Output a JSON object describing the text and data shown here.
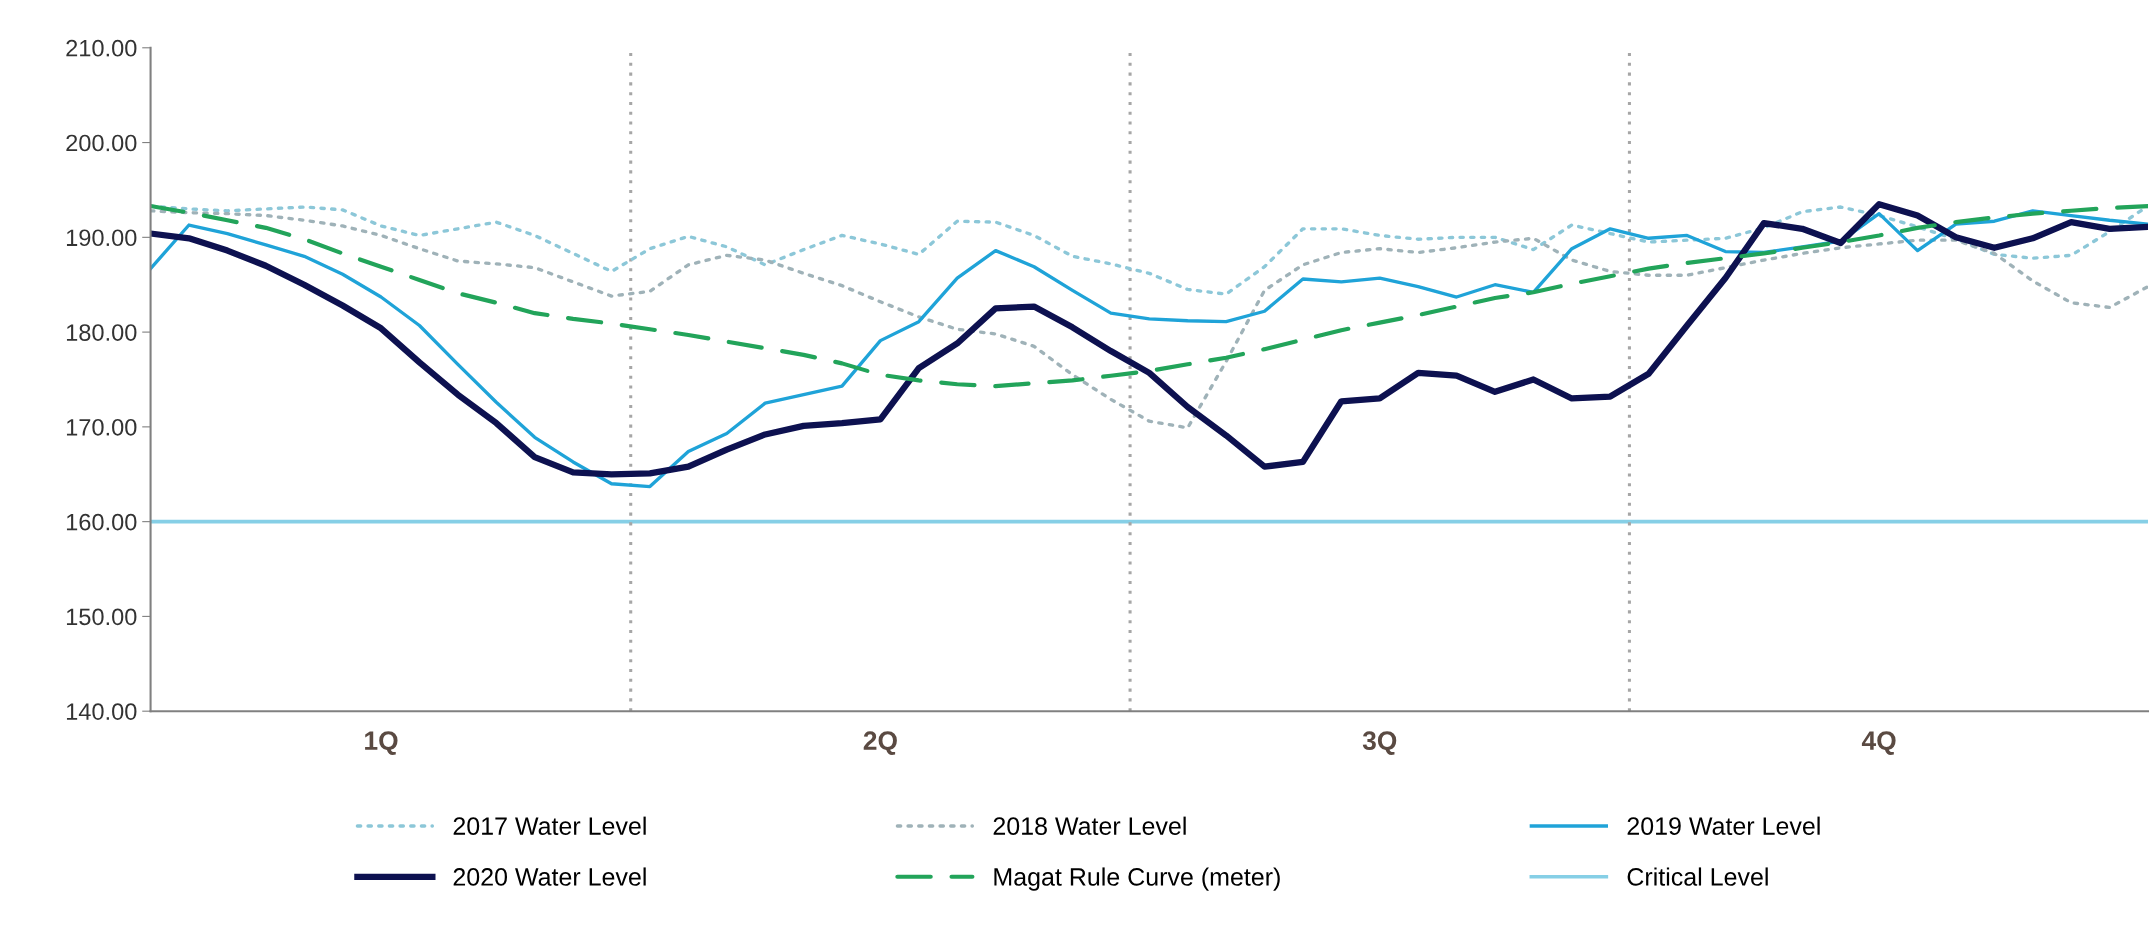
{
  "chart_data": {
    "type": "line",
    "categories": [
      null,
      null,
      null,
      null,
      null,
      null,
      "1Q",
      null,
      null,
      null,
      null,
      null,
      null,
      null,
      null,
      null,
      null,
      null,
      null,
      "2Q",
      null,
      null,
      null,
      null,
      null,
      null,
      null,
      null,
      null,
      null,
      null,
      null,
      "3Q",
      null,
      null,
      null,
      null,
      null,
      null,
      null,
      null,
      null,
      null,
      null,
      null,
      "4Q",
      null,
      null,
      null,
      null,
      null,
      null,
      null
    ],
    "ylim": [
      140,
      210
    ],
    "yticks": [
      {
        "value": 140,
        "label": "140.00"
      },
      {
        "value": 150,
        "label": "150.00"
      },
      {
        "value": 160,
        "label": "160.00"
      },
      {
        "value": 170,
        "label": "170.00"
      },
      {
        "value": 180,
        "label": "180.00"
      },
      {
        "value": 190,
        "label": "190.00"
      },
      {
        "value": 200,
        "label": "200.00"
      },
      {
        "value": 210,
        "label": "210.00"
      }
    ],
    "grid": false,
    "legend": "bottom",
    "ref_lines": [
      {
        "axis": "y",
        "value": 160,
        "label": "Critical Level",
        "color": "#86cfe6",
        "line_style": "solid"
      }
    ],
    "series": [
      {
        "name": "2017 Water Level",
        "color": "#8cc7d8",
        "line_style": "dotted",
        "values": [
          193.3,
          193.0,
          192.8,
          193.0,
          193.2,
          192.9,
          191.2,
          190.2,
          190.9,
          191.6,
          190.2,
          188.3,
          186.4,
          188.8,
          190.1,
          189.0,
          187.1,
          188.7,
          190.2,
          189.3,
          188.2,
          191.7,
          191.6,
          190.2,
          188.0,
          187.2,
          186.2,
          184.5,
          184.0,
          186.9,
          190.9,
          190.9,
          190.2,
          189.8,
          190.0,
          190.0,
          188.7,
          191.3,
          190.4,
          189.5,
          189.7,
          189.9,
          191.0,
          192.7,
          193.2,
          192.3,
          191.1,
          189.8,
          188.2,
          187.8,
          188.1,
          190.6,
          193.3
        ]
      },
      {
        "name": "2018 Water Level",
        "color": "#9fb2b8",
        "line_style": "dotted",
        "values": [
          192.8,
          192.6,
          192.5,
          192.3,
          191.8,
          191.2,
          190.2,
          188.8,
          187.5,
          187.2,
          186.8,
          185.3,
          183.8,
          184.3,
          187.1,
          188.1,
          187.6,
          186.2,
          184.9,
          183.2,
          181.6,
          180.3,
          179.8,
          178.5,
          175.5,
          172.9,
          170.6,
          169.9,
          176.9,
          184.4,
          187.1,
          188.4,
          188.8,
          188.4,
          188.9,
          189.5,
          189.9,
          187.6,
          186.4,
          186.0,
          186.0,
          186.8,
          187.6,
          188.3,
          188.9,
          189.3,
          189.7,
          189.7,
          188.3,
          185.4,
          183.1,
          182.6,
          184.8
        ]
      },
      {
        "name": "2019 Water Level",
        "color": "#1fa3d8",
        "line_style": "solid",
        "values": [
          186.7,
          191.3,
          190.4,
          189.2,
          188.0,
          186.1,
          183.7,
          180.7,
          176.6,
          172.6,
          168.9,
          166.3,
          164.0,
          163.7,
          167.4,
          169.3,
          172.5,
          173.4,
          174.3,
          179.1,
          181.1,
          185.7,
          188.6,
          186.9,
          184.4,
          182.0,
          181.4,
          181.2,
          181.1,
          182.2,
          185.6,
          185.3,
          185.7,
          184.8,
          183.7,
          185.0,
          184.2,
          188.8,
          190.9,
          189.9,
          190.2,
          188.5,
          188.4,
          189.0,
          189.6,
          192.5,
          188.6,
          191.4,
          191.7,
          192.8,
          192.3,
          191.8,
          191.4
        ]
      },
      {
        "name": "2020 Water Level",
        "color": "#0d1150",
        "line_style": "solid",
        "values": [
          190.4,
          189.9,
          188.6,
          187.0,
          185.0,
          182.8,
          180.4,
          176.8,
          173.4,
          170.4,
          166.8,
          165.2,
          165.0,
          165.1,
          165.8,
          167.6,
          169.2,
          170.1,
          170.4,
          170.8,
          176.2,
          178.8,
          182.5,
          182.7,
          180.5,
          178.0,
          175.7,
          172.1,
          169.1,
          165.8,
          166.3,
          172.7,
          173.0,
          175.7,
          175.4,
          173.7,
          175.0,
          173.0,
          173.2,
          175.6,
          180.7,
          185.7,
          191.5,
          190.9,
          189.4,
          193.5,
          192.3,
          190.0,
          188.9,
          189.9,
          191.6,
          190.9,
          191.1
        ]
      },
      {
        "name": "Magat Rule Curve (meter)",
        "color": "#22a45a",
        "line_style": "dashed",
        "values": [
          193.3,
          192.6,
          191.8,
          191.0,
          189.8,
          188.3,
          186.9,
          185.5,
          184.1,
          183.1,
          182.0,
          181.4,
          180.9,
          180.3,
          179.7,
          179.0,
          178.3,
          177.6,
          176.7,
          175.5,
          174.9,
          174.5,
          174.3,
          174.6,
          174.9,
          175.4,
          175.9,
          176.6,
          177.3,
          178.2,
          179.2,
          180.2,
          181.0,
          181.8,
          182.7,
          183.6,
          184.2,
          185.1,
          185.9,
          186.7,
          187.3,
          187.8,
          188.3,
          188.9,
          189.5,
          190.2,
          191.0,
          191.6,
          192.1,
          192.5,
          192.8,
          193.1,
          193.3
        ]
      }
    ]
  }
}
